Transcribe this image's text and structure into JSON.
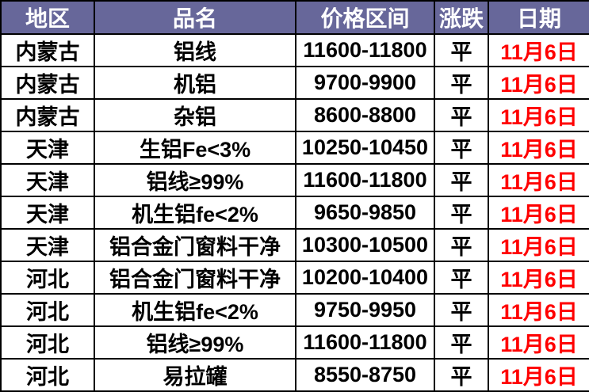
{
  "colors": {
    "header_bg": "#67679a",
    "header_text": "#ffffff",
    "date_text": "#ff0000",
    "border": "#000000",
    "row_bg": "#ffffff"
  },
  "chart_data": {
    "type": "table",
    "title": "",
    "columns": [
      "地区",
      "品名",
      "价格区间",
      "涨跌",
      "日期"
    ],
    "rows": [
      {
        "region": "内蒙古",
        "product": "铝线",
        "price_range": "11600-11800",
        "change": "平",
        "date": "11月6日"
      },
      {
        "region": "内蒙古",
        "product": "机铝",
        "price_range": "9700-9900",
        "change": "平",
        "date": "11月6日"
      },
      {
        "region": "内蒙古",
        "product": "杂铝",
        "price_range": "8600-8800",
        "change": "平",
        "date": "11月6日"
      },
      {
        "region": "天津",
        "product": "生铝Fe<3%",
        "price_range": "10250-10450",
        "change": "平",
        "date": "11月6日"
      },
      {
        "region": "天津",
        "product": "铝线≥99%",
        "price_range": "11600-11800",
        "change": "平",
        "date": "11月6日"
      },
      {
        "region": "天津",
        "product": "机生铝fe<2%",
        "price_range": "9650-9850",
        "change": "平",
        "date": "11月6日"
      },
      {
        "region": "天津",
        "product": "铝合金门窗料干净",
        "price_range": "10300-10500",
        "change": "平",
        "date": "11月6日"
      },
      {
        "region": "河北",
        "product": "铝合金门窗料干净",
        "price_range": "10200-10400",
        "change": "平",
        "date": "11月6日"
      },
      {
        "region": "河北",
        "product": "机生铝fe<2%",
        "price_range": "9750-9950",
        "change": "平",
        "date": "11月6日"
      },
      {
        "region": "河北",
        "product": "铝线≥99%",
        "price_range": "11600-11800",
        "change": "平",
        "date": "11月6日"
      },
      {
        "region": "河北",
        "product": "易拉罐",
        "price_range": "8550-8750",
        "change": "平",
        "date": "11月6日"
      }
    ]
  }
}
